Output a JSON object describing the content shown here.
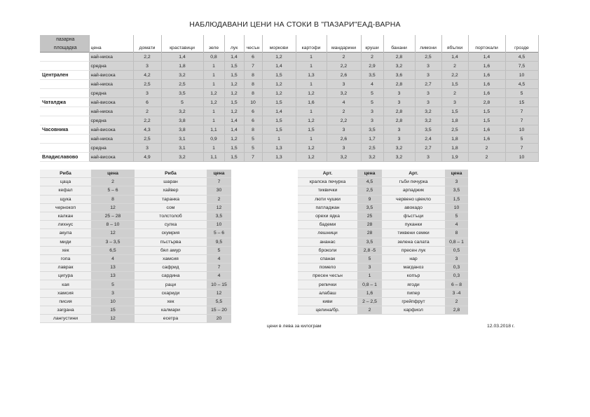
{
  "title": "НАБЛЮДАВАНИ ЦЕНИ НА СТОКИ В \"ПАЗАРИ\"ЕАД-ВАРНА",
  "market_table": {
    "header_top": "пазарна",
    "header_bottom": "площадка",
    "columns": [
      "цена",
      "домати",
      "краставици",
      "зеле",
      "лук",
      "чесън",
      "моркови",
      "картофи",
      "мандарини",
      "круши",
      "банани",
      "лимони",
      "ябълки",
      "портокали",
      "грозде"
    ],
    "rows": [
      {
        "market": "",
        "level": "най-ниска",
        "values": [
          "2,2",
          "1,4",
          "0,8",
          "1,4",
          "6",
          "1,2",
          "1",
          "2",
          "2",
          "2,8",
          "2,5",
          "1,4",
          "1,4",
          "4,5"
        ]
      },
      {
        "market": "",
        "level": "средна",
        "values": [
          "3",
          "1,8",
          "1",
          "1,5",
          "7",
          "1,4",
          "1",
          "2,2",
          "2,9",
          "3,2",
          "3",
          "2",
          "1,6",
          "7,5"
        ]
      },
      {
        "market": "Централен",
        "level": "най-висока",
        "values": [
          "4,2",
          "3,2",
          "1",
          "1,5",
          "8",
          "1,5",
          "1,3",
          "2,6",
          "3,5",
          "3,6",
          "3",
          "2,2",
          "1,6",
          "10"
        ]
      },
      {
        "market": "",
        "level": "най-ниска",
        "values": [
          "2,5",
          "2,5",
          "1",
          "1,2",
          "8",
          "1,2",
          "1",
          "3",
          "4",
          "2,8",
          "2,7",
          "1,5",
          "1,6",
          "4,5"
        ]
      },
      {
        "market": "",
        "level": "средна",
        "values": [
          "3",
          "3,5",
          "1,2",
          "1,2",
          "8",
          "1,2",
          "1,2",
          "3,2",
          "5",
          "3",
          "3",
          "2",
          "1,6",
          "5"
        ]
      },
      {
        "market": "Чаталджа",
        "level": "най-висока",
        "values": [
          "6",
          "5",
          "1,2",
          "1,5",
          "10",
          "1,5",
          "1,6",
          "4",
          "5",
          "3",
          "3",
          "3",
          "2,8",
          "15"
        ]
      },
      {
        "market": "",
        "level": "най-ниска",
        "values": [
          "2",
          "3,2",
          "1",
          "1,2",
          "6",
          "1,4",
          "1",
          "2",
          "3",
          "2,8",
          "3,2",
          "1,5",
          "1,5",
          "7"
        ]
      },
      {
        "market": "",
        "level": "средна",
        "values": [
          "2,2",
          "3,8",
          "1",
          "1,4",
          "6",
          "1,5",
          "1,2",
          "2,2",
          "3",
          "2,8",
          "3,2",
          "1,8",
          "1,5",
          "7"
        ]
      },
      {
        "market": "Часовника",
        "level": "най-висока",
        "values": [
          "4,3",
          "3,8",
          "1,1",
          "1,4",
          "8",
          "1,5",
          "1,5",
          "3",
          "3,5",
          "3",
          "3,5",
          "2,5",
          "1,6",
          "10"
        ]
      },
      {
        "market": "",
        "level": "най-ниска",
        "values": [
          "2,5",
          "3,1",
          "0,9",
          "1,2",
          "5",
          "1",
          "1",
          "2,6",
          "1,7",
          "3",
          "2,4",
          "1,8",
          "1,6",
          "5"
        ]
      },
      {
        "market": "",
        "level": "средна",
        "values": [
          "3",
          "3,1",
          "1",
          "1,5",
          "5",
          "1,3",
          "1,2",
          "3",
          "2,5",
          "3,2",
          "2,7",
          "1,8",
          "2",
          "7"
        ]
      },
      {
        "market": "Владиславово",
        "level": "най-висока",
        "values": [
          "4,9",
          "3,2",
          "1,1",
          "1,5",
          "7",
          "1,3",
          "1,2",
          "3,2",
          "3,2",
          "3,2",
          "3",
          "1,9",
          "2",
          "10"
        ]
      }
    ]
  },
  "fish_table": {
    "headers": [
      "Риба",
      "цена",
      "Риба",
      "цена"
    ],
    "rows": [
      [
        "цаца",
        "2",
        "шаран",
        "7"
      ],
      [
        "кефал",
        "5 – 6",
        "хайвер",
        "30"
      ],
      [
        "щука",
        "8",
        "таранка",
        "2"
      ],
      [
        "чернокоп",
        "12",
        "сом",
        "12"
      ],
      [
        "калкан",
        "25 – 28",
        "толстолоб",
        "3,5"
      ],
      [
        "лихнус",
        "8 – 10",
        "сулка",
        "10"
      ],
      [
        "акула",
        "12",
        "скумрия",
        "5 – 6"
      ],
      [
        "миди",
        "3 – 3,5",
        "пъстърва",
        "9,5"
      ],
      [
        "хек",
        "6,5",
        "бял амур",
        "5"
      ],
      [
        "гопа",
        "4",
        "хамсия",
        "4"
      ],
      [
        "лаврак",
        "13",
        "сафрид",
        "7"
      ],
      [
        "цигура",
        "13",
        "сардина",
        "4"
      ],
      [
        "кая",
        "5",
        "раци",
        "10 – 15"
      ],
      [
        "хамсия",
        "3",
        "скариди",
        "12"
      ],
      [
        "писия",
        "10",
        "хек",
        "5,5"
      ],
      [
        "зargана",
        "15",
        "калмари",
        "15 – 20"
      ],
      [
        "лангустини",
        "12",
        "есетра",
        "20"
      ]
    ]
  },
  "produce_table": {
    "headers": [
      "Арт.",
      "цена",
      "Арт.",
      "цена"
    ],
    "rows": [
      [
        "кралска печурка",
        "4,5",
        "гъби печурка",
        "3"
      ],
      [
        "тиквички",
        "2,5",
        "арпаджик",
        "3,5"
      ],
      [
        "люти чушки",
        "9",
        "червено цвекло",
        "1,5"
      ],
      [
        "патладжан",
        "3,5",
        "авокадо",
        "10"
      ],
      [
        "орехи ядка",
        "25",
        "фъстъци",
        "5"
      ],
      [
        "бадеми",
        "28",
        "пуканки",
        "4"
      ],
      [
        "лешници",
        "28",
        "тиквени семки",
        "8"
      ],
      [
        "ананас",
        "3,5",
        "зелена салата",
        "0,8 – 1"
      ],
      [
        "броколи",
        "2,8 -5",
        "пресен лук",
        "0,5"
      ],
      [
        "спанак",
        "5",
        "нар",
        "3"
      ],
      [
        "помело",
        "3",
        "магданоз",
        "0,3"
      ],
      [
        "пресен чесън",
        "1",
        "копър",
        "0,3"
      ],
      [
        "репички",
        "0,8 – 1",
        "ягоди",
        "6 – 8"
      ],
      [
        "алабаш",
        "1,6",
        "пипер",
        "3 -4"
      ],
      [
        "киви",
        "2 – 2,5",
        "грейпфрут",
        "2"
      ],
      [
        "целина/бр.",
        "2",
        "карфиол",
        "2,8"
      ]
    ]
  },
  "footer": {
    "unit_note": "цени в лева за килограм",
    "date": "12.03.2018 г."
  }
}
